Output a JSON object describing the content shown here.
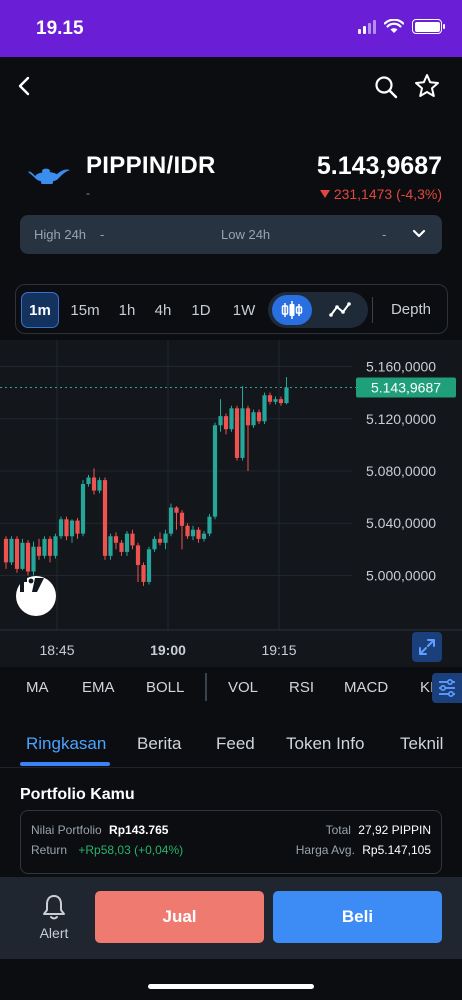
{
  "status_bar": {
    "time": "19.15"
  },
  "pair": {
    "name": "PIPPIN/IDR",
    "subtitle": "-",
    "price": "5.143,9687",
    "change": "231,1473 (-4,3%)"
  },
  "stats": {
    "high_label": "High 24h",
    "high_value": "-",
    "low_label": "Low 24h",
    "low_value": "-"
  },
  "timeframes": [
    "1m",
    "15m",
    "1h",
    "4h",
    "1D",
    "1W"
  ],
  "active_timeframe": "1m",
  "depth_label": "Depth",
  "chart_data": {
    "type": "candlestick",
    "y_ticks": [
      "5.160,0000",
      "5.120,0000",
      "5.080,0000",
      "5.040,0000",
      "5.000,0000"
    ],
    "x_ticks": [
      "18:45",
      "19:00",
      "19:15"
    ],
    "current_price_label": "5.143,9687",
    "ylim": [
      4985,
      5165
    ],
    "colors": {
      "up": "#26a69a",
      "down": "#ef5350"
    },
    "candles": [
      {
        "o": 5028,
        "c": 5010,
        "h": 5030,
        "l": 5005
      },
      {
        "o": 5010,
        "c": 5028,
        "h": 5030,
        "l": 5008
      },
      {
        "o": 5028,
        "c": 5005,
        "h": 5030,
        "l": 5002
      },
      {
        "o": 5005,
        "c": 5025,
        "h": 5028,
        "l": 5004
      },
      {
        "o": 5025,
        "c": 5003,
        "h": 5027,
        "l": 5000
      },
      {
        "o": 5003,
        "c": 5022,
        "h": 5026,
        "l": 5000
      },
      {
        "o": 5022,
        "c": 5015,
        "h": 5028,
        "l": 5012
      },
      {
        "o": 5015,
        "c": 5028,
        "h": 5030,
        "l": 5013
      },
      {
        "o": 5028,
        "c": 5015,
        "h": 5030,
        "l": 5010
      },
      {
        "o": 5015,
        "c": 5030,
        "h": 5032,
        "l": 5013
      },
      {
        "o": 5030,
        "c": 5043,
        "h": 5045,
        "l": 5028
      },
      {
        "o": 5043,
        "c": 5030,
        "h": 5045,
        "l": 5027
      },
      {
        "o": 5030,
        "c": 5042,
        "h": 5043,
        "l": 5025
      },
      {
        "o": 5042,
        "c": 5032,
        "h": 5044,
        "l": 5028
      },
      {
        "o": 5032,
        "c": 5070,
        "h": 5073,
        "l": 5030
      },
      {
        "o": 5070,
        "c": 5075,
        "h": 5077,
        "l": 5068
      },
      {
        "o": 5075,
        "c": 5065,
        "h": 5082,
        "l": 5062
      },
      {
        "o": 5065,
        "c": 5073,
        "h": 5075,
        "l": 5063
      },
      {
        "o": 5073,
        "c": 5015,
        "h": 5075,
        "l": 5012
      },
      {
        "o": 5015,
        "c": 5030,
        "h": 5032,
        "l": 5012
      },
      {
        "o": 5030,
        "c": 5025,
        "h": 5033,
        "l": 5020
      },
      {
        "o": 5025,
        "c": 5018,
        "h": 5027,
        "l": 5015
      },
      {
        "o": 5018,
        "c": 5032,
        "h": 5034,
        "l": 5015
      },
      {
        "o": 5032,
        "c": 5023,
        "h": 5035,
        "l": 5020
      },
      {
        "o": 5023,
        "c": 5008,
        "h": 5025,
        "l": 4995
      },
      {
        "o": 5008,
        "c": 4995,
        "h": 5010,
        "l": 4992
      },
      {
        "o": 4995,
        "c": 5020,
        "h": 5022,
        "l": 4993
      },
      {
        "o": 5020,
        "c": 5028,
        "h": 5030,
        "l": 5018
      },
      {
        "o": 5028,
        "c": 5025,
        "h": 5033,
        "l": 5023
      },
      {
        "o": 5025,
        "c": 5032,
        "h": 5035,
        "l": 5020
      },
      {
        "o": 5032,
        "c": 5052,
        "h": 5055,
        "l": 5030
      },
      {
        "o": 5052,
        "c": 5048,
        "h": 5053,
        "l": 5035
      },
      {
        "o": 5048,
        "c": 5038,
        "h": 5050,
        "l": 5020
      },
      {
        "o": 5038,
        "c": 5030,
        "h": 5040,
        "l": 5028
      },
      {
        "o": 5030,
        "c": 5035,
        "h": 5038,
        "l": 5027
      },
      {
        "o": 5035,
        "c": 5028,
        "h": 5037,
        "l": 5025
      },
      {
        "o": 5028,
        "c": 5032,
        "h": 5034,
        "l": 5026
      },
      {
        "o": 5032,
        "c": 5045,
        "h": 5047,
        "l": 5030
      },
      {
        "o": 5045,
        "c": 5115,
        "h": 5117,
        "l": 5043
      },
      {
        "o": 5115,
        "c": 5122,
        "h": 5135,
        "l": 5110
      },
      {
        "o": 5122,
        "c": 5112,
        "h": 5124,
        "l": 5108
      },
      {
        "o": 5112,
        "c": 5128,
        "h": 5130,
        "l": 5110
      },
      {
        "o": 5128,
        "c": 5090,
        "h": 5130,
        "l": 5088
      },
      {
        "o": 5090,
        "c": 5128,
        "h": 5145,
        "l": 5088
      },
      {
        "o": 5128,
        "c": 5115,
        "h": 5130,
        "l": 5080
      },
      {
        "o": 5115,
        "c": 5125,
        "h": 5127,
        "l": 5113
      },
      {
        "o": 5125,
        "c": 5118,
        "h": 5127,
        "l": 5116
      },
      {
        "o": 5118,
        "c": 5138,
        "h": 5140,
        "l": 5116
      },
      {
        "o": 5138,
        "c": 5133,
        "h": 5140,
        "l": 5131
      },
      {
        "o": 5133,
        "c": 5135,
        "h": 5137,
        "l": 5131
      },
      {
        "o": 5135,
        "c": 5132,
        "h": 5137,
        "l": 5130
      },
      {
        "o": 5132,
        "c": 5144,
        "h": 5152,
        "l": 5131
      }
    ]
  },
  "indicators": [
    "MA",
    "EMA",
    "BOLL",
    "VOL",
    "RSI",
    "MACD",
    "KI"
  ],
  "tabs": [
    "Ringkasan",
    "Berita",
    "Feed",
    "Token Info",
    "Teknil"
  ],
  "portfolio": {
    "title": "Portfolio Kamu",
    "value_label": "Nilai Portfolio",
    "value": "Rp143.765",
    "return_label": "Return",
    "return_value": "+Rp58,03 (+0,04%)",
    "total_label": "Total",
    "total_value": "27,92 PIPPIN",
    "avg_label": "Harga Avg.",
    "avg_value": "Rp5.147,105"
  },
  "bottom": {
    "alert_label": "Alert",
    "sell_label": "Jual",
    "buy_label": "Beli"
  }
}
